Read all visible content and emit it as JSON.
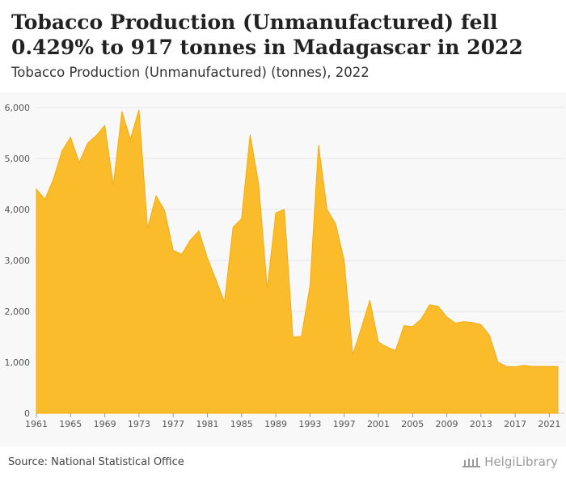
{
  "header": {
    "title": "Tobacco Production (Unmanufactured) fell 0.429% to 917 tonnes in Madagascar in 2022",
    "subtitle": "Tobacco Production (Unmanufactured) (tonnes), 2022"
  },
  "footer": {
    "source": "Source: National Statistical Office",
    "logo_text": "HelgiLibrary"
  },
  "chart_data": {
    "type": "area",
    "color": "#fbbc2c",
    "stroke": "#f2ad12",
    "background": "#f8f8f8",
    "grid": true,
    "ylim": [
      0,
      6000
    ],
    "yticks": [
      0,
      1000,
      2000,
      3000,
      4000,
      5000,
      6000
    ],
    "ytick_labels": [
      "0",
      "1,000",
      "2,000",
      "3,000",
      "4,000",
      "5,000",
      "6,000"
    ],
    "xticks": [
      1961,
      1965,
      1969,
      1973,
      1977,
      1981,
      1985,
      1989,
      1993,
      1997,
      2001,
      2005,
      2009,
      2013,
      2017,
      2021
    ],
    "x": [
      1961,
      1962,
      1963,
      1964,
      1965,
      1966,
      1967,
      1968,
      1969,
      1970,
      1971,
      1972,
      1973,
      1974,
      1975,
      1976,
      1977,
      1978,
      1979,
      1980,
      1981,
      1982,
      1983,
      1984,
      1985,
      1986,
      1987,
      1988,
      1989,
      1990,
      1991,
      1992,
      1993,
      1994,
      1995,
      1996,
      1997,
      1998,
      1999,
      2000,
      2001,
      2002,
      2003,
      2004,
      2005,
      2006,
      2007,
      2008,
      2009,
      2010,
      2011,
      2012,
      2013,
      2014,
      2015,
      2016,
      2017,
      2018,
      2019,
      2020,
      2021,
      2022
    ],
    "values": [
      4400,
      4200,
      4600,
      5150,
      5420,
      4920,
      5300,
      5450,
      5650,
      4480,
      5920,
      5380,
      5960,
      3630,
      4270,
      3980,
      3200,
      3120,
      3400,
      3580,
      3050,
      2620,
      2180,
      3650,
      3820,
      5470,
      4500,
      2450,
      3930,
      4000,
      1500,
      1510,
      2500,
      5270,
      4000,
      3720,
      3000,
      1150,
      1670,
      2220,
      1400,
      1300,
      1230,
      1720,
      1700,
      1850,
      2130,
      2100,
      1890,
      1770,
      1800,
      1780,
      1740,
      1530,
      1000,
      920,
      910,
      940,
      920,
      920,
      921,
      917
    ]
  }
}
